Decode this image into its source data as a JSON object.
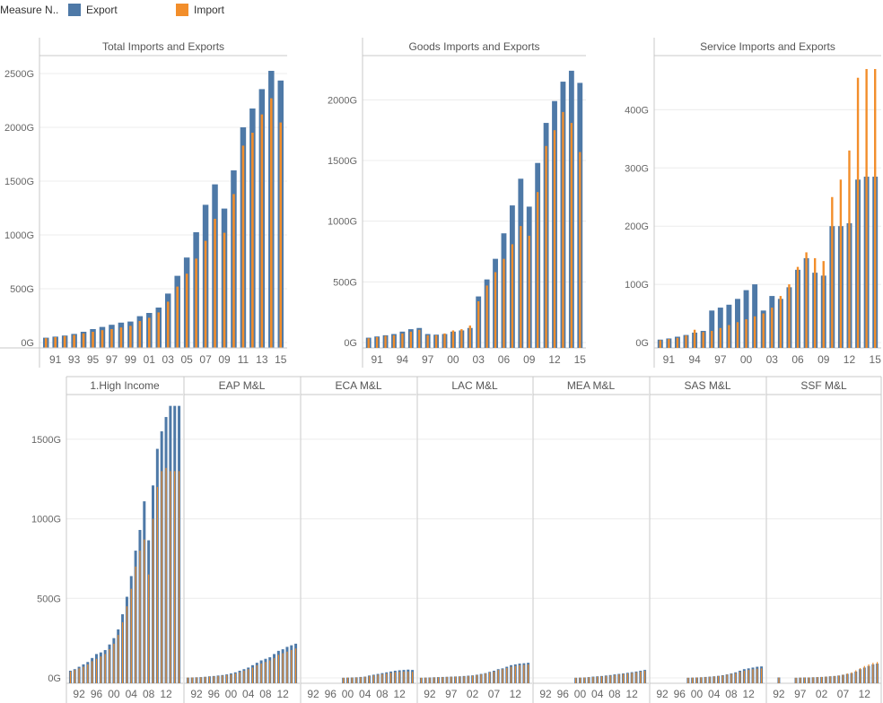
{
  "legend": {
    "title": "Measure N..",
    "items": [
      {
        "label": "Export",
        "color": "#4e79a7"
      },
      {
        "label": "Import",
        "color": "#f28e2b"
      }
    ]
  },
  "colors": {
    "export": "#4e79a7",
    "import": "#f28e2b",
    "grid": "#ececec",
    "axis": "#c8c8c8",
    "tick_text": "#666666"
  },
  "chart_data": [
    {
      "type": "bar",
      "title": "Total Imports and Exports",
      "categories": [
        "90",
        "91",
        "92",
        "93",
        "94",
        "95",
        "96",
        "97",
        "98",
        "99",
        "00",
        "01",
        "02",
        "03",
        "04",
        "05",
        "06",
        "07",
        "08",
        "09",
        "10",
        "11",
        "12",
        "13",
        "14",
        "15"
      ],
      "x_tick_labels": [
        "91",
        "93",
        "95",
        "97",
        "99",
        "01",
        "03",
        "05",
        "07",
        "09",
        "11",
        "13",
        "15"
      ],
      "y_ticks": [
        "0G",
        "500G",
        "1000G",
        "1500G",
        "2000G",
        "2500G"
      ],
      "ylim": [
        0,
        2650
      ],
      "series": [
        {
          "name": "Export",
          "values": [
            45,
            55,
            65,
            80,
            100,
            125,
            145,
            165,
            185,
            195,
            245,
            275,
            325,
            455,
            620,
            790,
            1025,
            1280,
            1470,
            1245,
            1600,
            2000,
            2175,
            2355,
            2525,
            2435
          ]
        },
        {
          "name": "Import",
          "values": [
            40,
            50,
            60,
            70,
            85,
            100,
            115,
            125,
            140,
            155,
            200,
            230,
            280,
            380,
            520,
            640,
            780,
            945,
            1150,
            1020,
            1380,
            1830,
            1950,
            2120,
            2270,
            2045
          ]
        }
      ]
    },
    {
      "type": "bar",
      "title": "Goods Imports and Exports",
      "categories": [
        "90",
        "91",
        "92",
        "93",
        "94",
        "95",
        "96",
        "97",
        "98",
        "99",
        "00",
        "01",
        "02",
        "03",
        "04",
        "05",
        "06",
        "07",
        "08",
        "09",
        "10",
        "11",
        "12",
        "13",
        "14",
        "15"
      ],
      "x_tick_labels": [
        "91",
        "94",
        "97",
        "00",
        "03",
        "06",
        "09",
        "12",
        "15"
      ],
      "y_ticks": [
        "0G",
        "500G",
        "1000G",
        "1500G",
        "2000G"
      ],
      "ylim": [
        0,
        2350
      ],
      "series": [
        {
          "name": "Export",
          "values": [
            40,
            50,
            60,
            70,
            90,
            110,
            120,
            70,
            65,
            70,
            90,
            100,
            120,
            380,
            520,
            690,
            900,
            1130,
            1350,
            1120,
            1480,
            1810,
            1990,
            2150,
            2240,
            2140
          ]
        },
        {
          "name": "Import",
          "values": [
            35,
            45,
            55,
            60,
            75,
            90,
            105,
            60,
            60,
            75,
            100,
            110,
            140,
            340,
            470,
            580,
            690,
            810,
            960,
            880,
            1240,
            1620,
            1750,
            1900,
            1810,
            1570
          ]
        }
      ]
    },
    {
      "type": "bar",
      "title": "Service Imports and Exports",
      "categories": [
        "90",
        "91",
        "92",
        "93",
        "94",
        "95",
        "96",
        "97",
        "98",
        "99",
        "00",
        "01",
        "02",
        "03",
        "04",
        "05",
        "06",
        "07",
        "08",
        "09",
        "10",
        "11",
        "12",
        "13",
        "14",
        "15"
      ],
      "x_tick_labels": [
        "91",
        "94",
        "97",
        "00",
        "03",
        "06",
        "09",
        "12",
        "15"
      ],
      "y_ticks": [
        "0G",
        "100G",
        "200G",
        "300G",
        "400G"
      ],
      "ylim": [
        0,
        490
      ],
      "series": [
        {
          "name": "Export",
          "values": [
            5,
            7,
            10,
            13,
            17,
            20,
            55,
            60,
            65,
            75,
            90,
            100,
            55,
            80,
            75,
            95,
            125,
            145,
            120,
            115,
            200,
            200,
            205,
            280,
            285,
            285
          ]
        },
        {
          "name": "Import",
          "values": [
            4,
            6,
            8,
            12,
            22,
            18,
            20,
            25,
            30,
            35,
            40,
            45,
            50,
            60,
            80,
            100,
            130,
            155,
            145,
            140,
            250,
            280,
            330,
            455,
            470,
            470
          ]
        }
      ]
    },
    {
      "type": "bar",
      "title": "1.High Income",
      "categories": [
        "90",
        "91",
        "92",
        "93",
        "94",
        "95",
        "96",
        "97",
        "98",
        "99",
        "00",
        "01",
        "02",
        "03",
        "04",
        "05",
        "06",
        "07",
        "08",
        "09",
        "10",
        "11",
        "12",
        "13",
        "14",
        "15"
      ],
      "x_tick_labels": [
        "92",
        "96",
        "00",
        "04",
        "08",
        "12"
      ],
      "y_ticks": [
        "0G",
        "500G",
        "1000G",
        "1500G"
      ],
      "ylim": [
        0,
        1770
      ],
      "series": [
        {
          "name": "Export",
          "values": [
            45,
            55,
            70,
            85,
            100,
            125,
            150,
            160,
            175,
            210,
            250,
            305,
            400,
            510,
            640,
            800,
            930,
            1110,
            865,
            1210,
            1440,
            1550,
            1640,
            1710,
            1710,
            1710
          ]
        },
        {
          "name": "Import",
          "values": [
            40,
            50,
            60,
            70,
            85,
            105,
            120,
            135,
            150,
            180,
            215,
            270,
            350,
            450,
            560,
            700,
            800,
            870,
            650,
            1000,
            1200,
            1300,
            1320,
            1300,
            1300,
            1300
          ]
        }
      ]
    },
    {
      "type": "bar",
      "title": "EAP M&L",
      "categories": [
        "90",
        "91",
        "92",
        "93",
        "94",
        "95",
        "96",
        "97",
        "98",
        "99",
        "00",
        "01",
        "02",
        "03",
        "04",
        "05",
        "06",
        "07",
        "08",
        "09",
        "10",
        "11",
        "12",
        "13",
        "14",
        "15"
      ],
      "x_tick_labels": [
        "92",
        "96",
        "00",
        "04",
        "08",
        "12"
      ],
      "series": [
        {
          "name": "Export",
          "values": [
            2,
            3,
            4,
            5,
            7,
            10,
            12,
            15,
            18,
            22,
            28,
            35,
            45,
            55,
            65,
            80,
            95,
            110,
            120,
            130,
            150,
            170,
            180,
            195,
            205,
            215
          ]
        },
        {
          "name": "Import",
          "values": [
            2,
            3,
            3,
            4,
            6,
            8,
            10,
            12,
            15,
            18,
            22,
            28,
            35,
            45,
            55,
            65,
            80,
            90,
            100,
            110,
            125,
            145,
            155,
            165,
            175,
            185
          ]
        }
      ]
    },
    {
      "type": "bar",
      "title": "ECA M&L",
      "categories": [
        "90",
        "91",
        "92",
        "93",
        "94",
        "95",
        "96",
        "97",
        "98",
        "99",
        "00",
        "01",
        "02",
        "03",
        "04",
        "05",
        "06",
        "07",
        "08",
        "09",
        "10",
        "11",
        "12",
        "13",
        "14",
        "15"
      ],
      "x_tick_labels": [
        "92",
        "96",
        "00",
        "04",
        "08",
        "12"
      ],
      "series": [
        {
          "name": "Export",
          "values": [
            0,
            0,
            0,
            0,
            0,
            0,
            0,
            0,
            0,
            1,
            2,
            3,
            4,
            6,
            8,
            15,
            20,
            25,
            30,
            35,
            40,
            45,
            48,
            50,
            52,
            50
          ]
        },
        {
          "name": "Import",
          "values": [
            0,
            0,
            0,
            0,
            0,
            0,
            0,
            0,
            0,
            1,
            2,
            2,
            3,
            5,
            7,
            12,
            16,
            20,
            24,
            28,
            32,
            36,
            38,
            40,
            40,
            38
          ]
        }
      ]
    },
    {
      "type": "bar",
      "title": "LAC M&L",
      "categories": [
        "90",
        "91",
        "92",
        "93",
        "94",
        "95",
        "96",
        "97",
        "98",
        "99",
        "00",
        "01",
        "02",
        "03",
        "04",
        "05",
        "06",
        "07",
        "08",
        "09",
        "10",
        "11",
        "12",
        "13",
        "14",
        "15"
      ],
      "x_tick_labels": [
        "92",
        "97",
        "02",
        "07",
        "12"
      ],
      "series": [
        {
          "name": "Export",
          "values": [
            1,
            2,
            3,
            4,
            5,
            6,
            7,
            8,
            9,
            10,
            12,
            14,
            16,
            20,
            25,
            30,
            38,
            45,
            55,
            60,
            70,
            80,
            85,
            90,
            92,
            95
          ]
        },
        {
          "name": "Import",
          "values": [
            1,
            2,
            2,
            3,
            4,
            5,
            6,
            7,
            8,
            9,
            10,
            12,
            14,
            18,
            22,
            28,
            34,
            40,
            50,
            55,
            62,
            70,
            75,
            80,
            82,
            85
          ]
        }
      ]
    },
    {
      "type": "bar",
      "title": "MEA M&L",
      "categories": [
        "90",
        "91",
        "92",
        "93",
        "94",
        "95",
        "96",
        "97",
        "98",
        "99",
        "00",
        "01",
        "02",
        "03",
        "04",
        "05",
        "06",
        "07",
        "08",
        "09",
        "10",
        "11",
        "12",
        "13",
        "14",
        "15"
      ],
      "x_tick_labels": [
        "92",
        "96",
        "00",
        "04",
        "08",
        "12"
      ],
      "series": [
        {
          "name": "Export",
          "values": [
            0,
            0,
            0,
            0,
            0,
            0,
            0,
            0,
            0,
            1,
            2,
            3,
            5,
            8,
            10,
            12,
            15,
            18,
            22,
            25,
            28,
            32,
            36,
            40,
            45,
            50
          ]
        },
        {
          "name": "Import",
          "values": [
            0,
            0,
            0,
            0,
            0,
            0,
            0,
            0,
            0,
            1,
            2,
            3,
            4,
            6,
            8,
            10,
            12,
            15,
            18,
            22,
            25,
            28,
            32,
            36,
            40,
            45
          ]
        }
      ]
    },
    {
      "type": "bar",
      "title": "SAS M&L",
      "categories": [
        "90",
        "91",
        "92",
        "93",
        "94",
        "95",
        "96",
        "97",
        "98",
        "99",
        "00",
        "01",
        "02",
        "03",
        "04",
        "05",
        "06",
        "07",
        "08",
        "09",
        "10",
        "11",
        "12",
        "13",
        "14",
        "15"
      ],
      "x_tick_labels": [
        "92",
        "96",
        "00",
        "04",
        "08",
        "12"
      ],
      "series": [
        {
          "name": "Export",
          "values": [
            0,
            0,
            0,
            0,
            0,
            0,
            0,
            0,
            1,
            2,
            3,
            4,
            6,
            8,
            10,
            13,
            17,
            22,
            28,
            35,
            45,
            55,
            60,
            65,
            70,
            72
          ]
        },
        {
          "name": "Import",
          "values": [
            0,
            0,
            0,
            0,
            0,
            0,
            0,
            0,
            1,
            2,
            3,
            4,
            5,
            7,
            9,
            12,
            15,
            20,
            25,
            30,
            38,
            45,
            50,
            55,
            58,
            60
          ]
        }
      ]
    },
    {
      "type": "bar",
      "title": "SSF M&L",
      "categories": [
        "90",
        "91",
        "92",
        "93",
        "94",
        "95",
        "96",
        "97",
        "98",
        "99",
        "00",
        "01",
        "02",
        "03",
        "04",
        "05",
        "06",
        "07",
        "08",
        "09",
        "10",
        "11",
        "12",
        "13",
        "14",
        "15"
      ],
      "x_tick_labels": [
        "92",
        "97",
        "02",
        "07",
        "12"
      ],
      "series": [
        {
          "name": "Export",
          "values": [
            0,
            0,
            3,
            0,
            0,
            0,
            1,
            2,
            3,
            3,
            4,
            5,
            6,
            8,
            10,
            12,
            15,
            20,
            25,
            30,
            40,
            55,
            65,
            75,
            85,
            90
          ]
        },
        {
          "name": "Import",
          "values": [
            0,
            0,
            2,
            0,
            0,
            0,
            1,
            2,
            3,
            3,
            4,
            5,
            6,
            8,
            10,
            12,
            15,
            20,
            28,
            35,
            48,
            62,
            75,
            85,
            95,
            100
          ]
        }
      ]
    }
  ]
}
